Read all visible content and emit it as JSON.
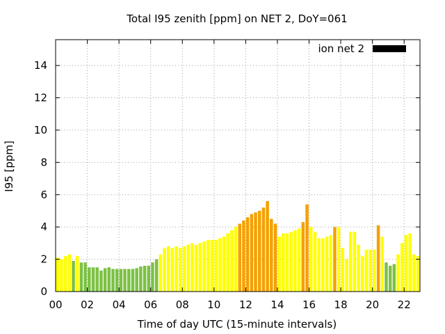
{
  "chart_data": {
    "type": "bar",
    "title": "Total I95 zenith [ppm] on NET 2, DoY=061",
    "xlabel": "Time of day UTC (15-minute intervals)",
    "ylabel": "I95 [ppm]",
    "xlim": [
      0,
      23
    ],
    "ylim": [
      0,
      15.6
    ],
    "x_ticks": [
      {
        "value": 0,
        "label": "00"
      },
      {
        "value": 2,
        "label": "02"
      },
      {
        "value": 4,
        "label": "04"
      },
      {
        "value": 6,
        "label": "06"
      },
      {
        "value": 8,
        "label": "08"
      },
      {
        "value": 10,
        "label": "10"
      },
      {
        "value": 12,
        "label": "12"
      },
      {
        "value": 14,
        "label": "14"
      },
      {
        "value": 16,
        "label": "16"
      },
      {
        "value": 18,
        "label": "18"
      },
      {
        "value": 20,
        "label": "20"
      },
      {
        "value": 22,
        "label": "22"
      }
    ],
    "y_ticks": [
      0,
      2,
      4,
      6,
      8,
      10,
      12,
      14
    ],
    "grid": true,
    "legend": {
      "label": "ion net 2",
      "color": "#000000",
      "placement": "top-right"
    },
    "bar_interval_hours": 0.25,
    "level_colors": {
      "low": "#7cc144",
      "mid": "#ffff00",
      "high": "#f5a000"
    },
    "series": [
      {
        "times": [
          0.0,
          0.25,
          0.5,
          0.75,
          1.0,
          1.25,
          1.5,
          1.75,
          2.0,
          2.25,
          2.5,
          2.75,
          3.0,
          3.25,
          3.5,
          3.75,
          4.0,
          4.25,
          4.5,
          4.75,
          5.0,
          5.25,
          5.5,
          5.75,
          6.0,
          6.25,
          6.5,
          6.75,
          7.0,
          7.25,
          7.5,
          7.75,
          8.0,
          8.25,
          8.5,
          8.75,
          9.0,
          9.25,
          9.5,
          9.75,
          10.0,
          10.25,
          10.5,
          10.75,
          11.0,
          11.25,
          11.5,
          11.75,
          12.0,
          12.25,
          12.5,
          12.75,
          13.0,
          13.25,
          13.5,
          13.75,
          14.0,
          14.25,
          14.5,
          14.75,
          15.0,
          15.25,
          15.5,
          15.75,
          16.0,
          16.25,
          16.5,
          16.75,
          17.0,
          17.25,
          17.5,
          17.75,
          18.0,
          18.25,
          18.5,
          18.75,
          19.0,
          19.25,
          19.5,
          19.75,
          20.0,
          20.25,
          20.5,
          20.75,
          21.0,
          21.25,
          21.5,
          21.75,
          22.0,
          22.25,
          22.5,
          22.75
        ],
        "values": [
          2.1,
          2.0,
          2.2,
          2.3,
          1.9,
          2.2,
          1.8,
          1.8,
          1.5,
          1.5,
          1.5,
          1.3,
          1.45,
          1.5,
          1.4,
          1.4,
          1.4,
          1.4,
          1.4,
          1.4,
          1.45,
          1.55,
          1.6,
          1.6,
          1.8,
          2.0,
          2.3,
          2.7,
          2.8,
          2.7,
          2.8,
          2.7,
          2.8,
          2.9,
          3.0,
          2.9,
          3.0,
          3.1,
          3.2,
          3.2,
          3.2,
          3.3,
          3.4,
          3.6,
          3.8,
          4.0,
          4.2,
          4.4,
          4.6,
          4.8,
          4.9,
          5.0,
          5.2,
          5.6,
          4.5,
          4.2,
          3.4,
          3.6,
          3.6,
          3.7,
          3.8,
          3.9,
          4.3,
          5.4,
          4.0,
          3.7,
          3.3,
          3.3,
          3.4,
          3.5,
          4.0,
          4.0,
          2.7,
          2.0,
          3.7,
          3.7,
          2.9,
          2.2,
          2.6,
          2.6,
          2.6,
          4.1,
          3.4,
          1.8,
          1.6,
          1.7,
          2.3,
          3.0,
          3.5,
          3.6,
          2.3,
          2.2
        ],
        "levels": [
          "mid",
          "mid",
          "mid",
          "mid",
          "low",
          "mid",
          "low",
          "low",
          "low",
          "low",
          "low",
          "low",
          "low",
          "low",
          "low",
          "low",
          "low",
          "low",
          "low",
          "low",
          "low",
          "low",
          "low",
          "low",
          "low",
          "low",
          "mid",
          "mid",
          "mid",
          "mid",
          "mid",
          "mid",
          "mid",
          "mid",
          "mid",
          "mid",
          "mid",
          "mid",
          "mid",
          "mid",
          "mid",
          "mid",
          "mid",
          "mid",
          "mid",
          "mid",
          "high",
          "high",
          "high",
          "high",
          "high",
          "high",
          "high",
          "high",
          "high",
          "high",
          "mid",
          "mid",
          "mid",
          "mid",
          "mid",
          "mid",
          "high",
          "high",
          "mid",
          "mid",
          "mid",
          "mid",
          "mid",
          "mid",
          "high",
          "mid",
          "mid",
          "mid",
          "mid",
          "mid",
          "mid",
          "mid",
          "mid",
          "mid",
          "mid",
          "high",
          "mid",
          "low",
          "low",
          "low",
          "mid",
          "mid",
          "mid",
          "mid",
          "mid",
          "mid"
        ]
      }
    ]
  }
}
